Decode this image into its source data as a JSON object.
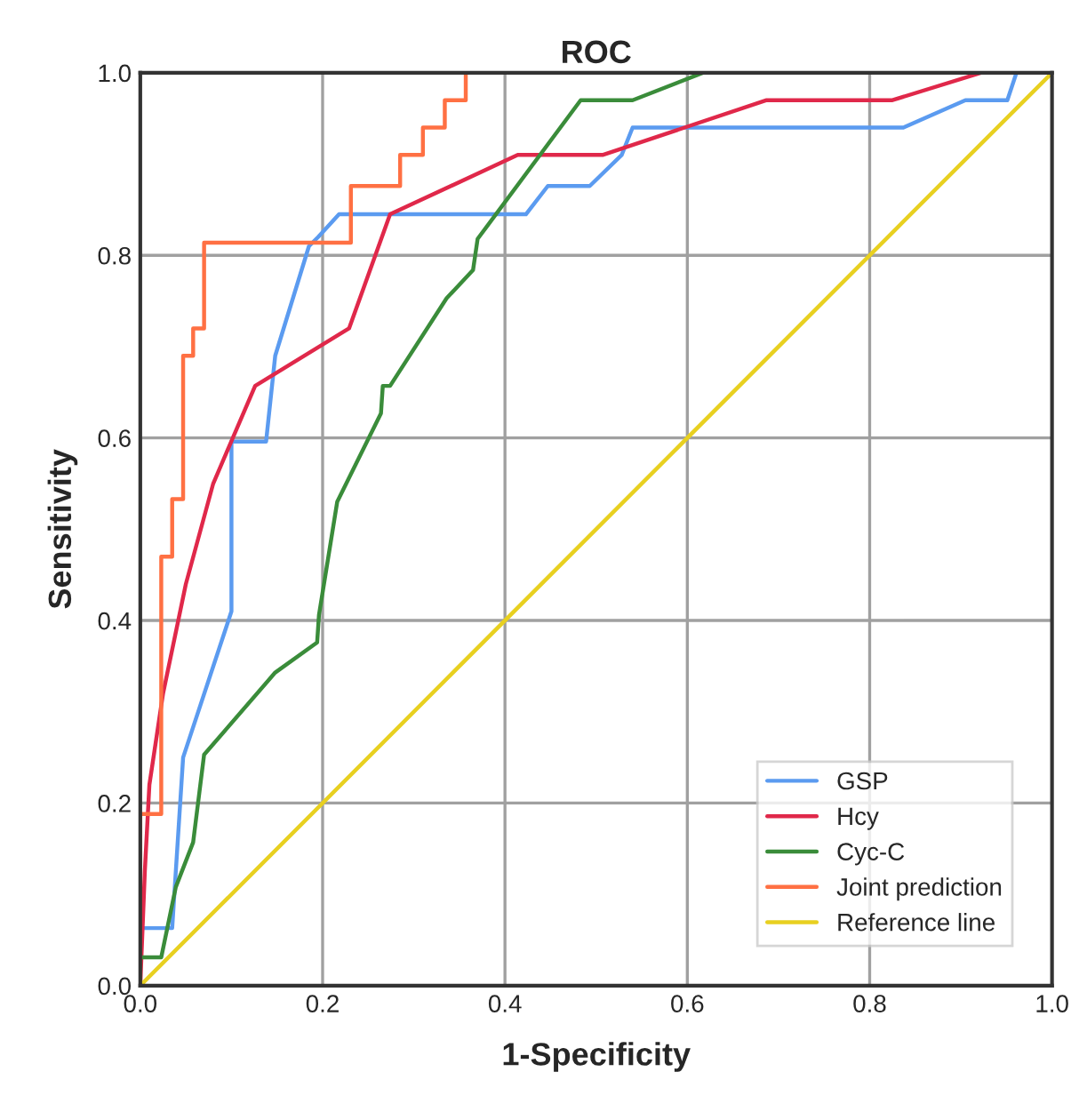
{
  "chart_data": {
    "type": "line",
    "title": "ROC",
    "xlabel": "1-Specificity",
    "ylabel": "Sensitivity",
    "xlim": [
      0,
      1
    ],
    "ylim": [
      0,
      1
    ],
    "xticks": [
      {
        "value": 0,
        "label": "0.0"
      },
      {
        "value": 0.2,
        "label": "0.2"
      },
      {
        "value": 0.4,
        "label": "0.4"
      },
      {
        "value": 0.6,
        "label": "0.6"
      },
      {
        "value": 0.8,
        "label": "0.8"
      },
      {
        "value": 1,
        "label": "1.0"
      }
    ],
    "yticks": [
      {
        "value": 0,
        "label": "0.0"
      },
      {
        "value": 0.2,
        "label": "0.2"
      },
      {
        "value": 0.4,
        "label": "0.4"
      },
      {
        "value": 0.6,
        "label": "0.6"
      },
      {
        "value": 0.8,
        "label": "0.8"
      },
      {
        "value": 1,
        "label": "1.0"
      }
    ],
    "grid": true,
    "legend": "bottom right",
    "line_style": "solid",
    "series": [
      {
        "name": "GSP",
        "color": "#5b9bf0",
        "x": [
          0,
          0,
          0.035,
          0.047,
          0.1,
          0.1,
          0.138,
          0.148,
          0.185,
          0.195,
          0.218,
          0.423,
          0.447,
          0.493,
          0.528,
          0.54,
          0.837,
          0.905,
          0.951,
          0.961,
          1
        ],
        "values": [
          0,
          0.063,
          0.063,
          0.25,
          0.41,
          0.596,
          0.596,
          0.69,
          0.81,
          0.82,
          0.845,
          0.845,
          0.876,
          0.876,
          0.91,
          0.94,
          0.94,
          0.97,
          0.97,
          1,
          1
        ]
      },
      {
        "name": "Hcy",
        "color": "#e0284a",
        "x": [
          0,
          0.005,
          0.01,
          0.025,
          0.05,
          0.08,
          0.126,
          0.229,
          0.274,
          0.414,
          0.507,
          0.687,
          0.825,
          0.922,
          1
        ],
        "values": [
          0,
          0.125,
          0.22,
          0.32,
          0.44,
          0.55,
          0.657,
          0.72,
          0.845,
          0.91,
          0.91,
          0.97,
          0.97,
          1,
          1
        ]
      },
      {
        "name": "Cyc-C",
        "color": "#3a8c3a",
        "x": [
          0,
          0,
          0.023,
          0.039,
          0.058,
          0.07,
          0.148,
          0.194,
          0.196,
          0.216,
          0.264,
          0.266,
          0.274,
          0.336,
          0.365,
          0.37,
          0.483,
          0.54,
          0.617,
          1
        ],
        "values": [
          0,
          0.031,
          0.031,
          0.108,
          0.157,
          0.253,
          0.343,
          0.376,
          0.406,
          0.53,
          0.627,
          0.657,
          0.657,
          0.753,
          0.784,
          0.818,
          0.97,
          0.97,
          1,
          1
        ]
      },
      {
        "name": "Joint prediction",
        "color": "#ff7043",
        "x": [
          0,
          0,
          0.023,
          0.023,
          0.035,
          0.035,
          0.047,
          0.047,
          0.058,
          0.058,
          0.07,
          0.07,
          0.231,
          0.231,
          0.285,
          0.285,
          0.31,
          0.31,
          0.334,
          0.334,
          0.357,
          0.357,
          1
        ],
        "values": [
          0,
          0.188,
          0.188,
          0.47,
          0.47,
          0.533,
          0.533,
          0.69,
          0.69,
          0.72,
          0.72,
          0.814,
          0.814,
          0.876,
          0.876,
          0.91,
          0.91,
          0.94,
          0.94,
          0.97,
          0.97,
          1,
          1
        ]
      },
      {
        "name": "Reference line",
        "color": "#e8d020",
        "x": [
          0,
          1
        ],
        "values": [
          0,
          1
        ]
      }
    ]
  }
}
